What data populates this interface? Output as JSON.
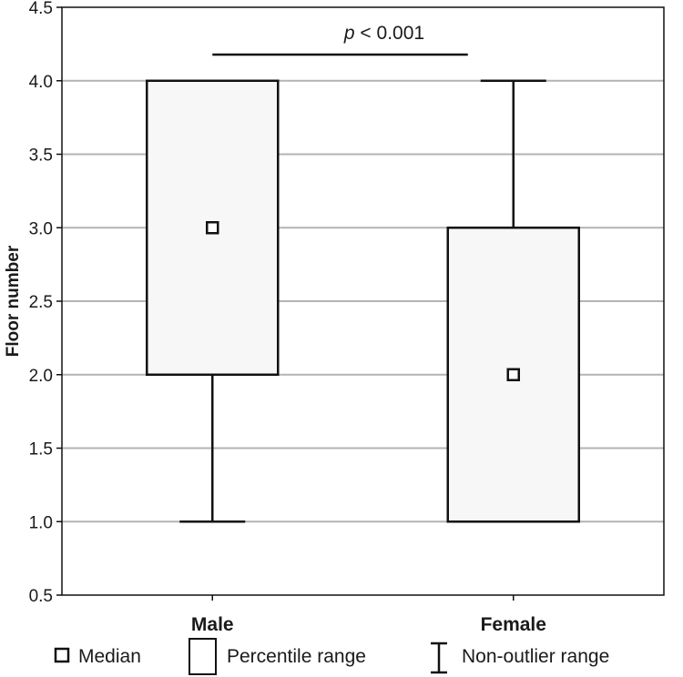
{
  "chart_data": {
    "type": "boxplot",
    "ylabel": "Floor number",
    "xlabel": "",
    "ylim": [
      0.5,
      4.5
    ],
    "yticks": [
      "0.5",
      "1.0",
      "1.5",
      "2.0",
      "2.5",
      "3.0",
      "3.5",
      "4.0",
      "4.5"
    ],
    "grid": true,
    "categories": [
      "Male",
      "Female"
    ],
    "boxes": [
      {
        "category": "Male",
        "median": 3.0,
        "q1": 2.0,
        "q3": 4.0,
        "whisker_low": 1.0,
        "whisker_high": 4.0
      },
      {
        "category": "Female",
        "median": 2.0,
        "q1": 1.0,
        "q3": 3.0,
        "whisker_low": 1.0,
        "whisker_high": 4.0
      }
    ],
    "annotation": {
      "italic": "p",
      "rest": " < 0.001"
    },
    "legend": {
      "position": "bottom",
      "items": [
        {
          "symbol": "median",
          "label": "Median"
        },
        {
          "symbol": "box",
          "label": "Percentile range"
        },
        {
          "symbol": "whisker",
          "label": "Non-outlier range"
        }
      ]
    },
    "colors": {
      "box_fill": "#f7f7f7",
      "stroke": "#111111",
      "grid": "#b3b3b3"
    }
  }
}
